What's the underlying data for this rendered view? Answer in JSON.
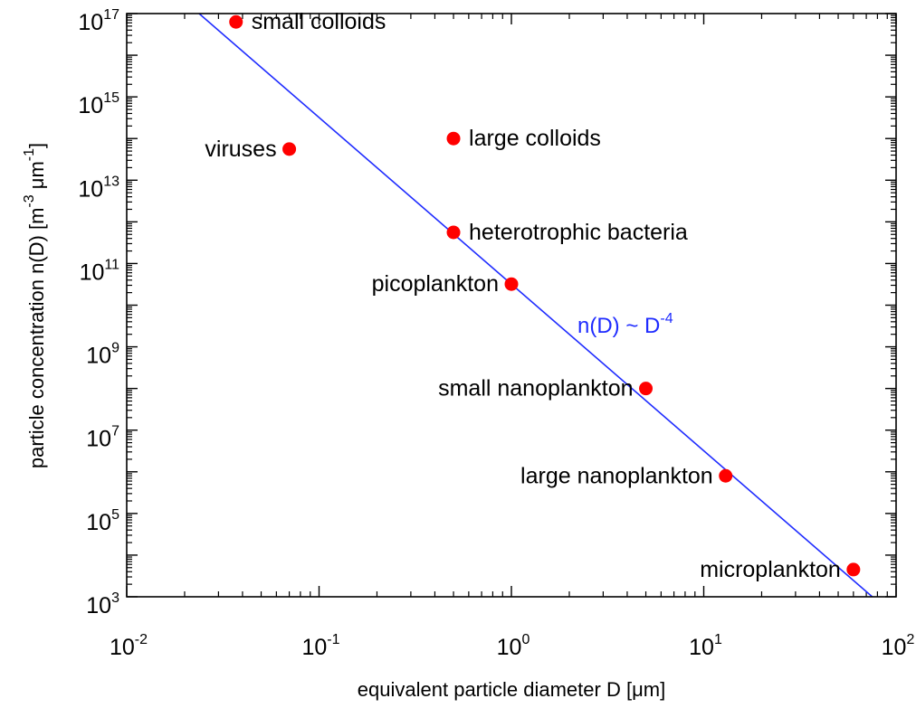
{
  "chart_data": {
    "type": "scatter",
    "xlabel": {
      "main": "equivalent particle diameter D  [",
      "unit": "μm",
      "close": "]"
    },
    "ylabel": {
      "main": "particle concentration n(D)  [m",
      "sup1": "-3",
      "mid": " μm",
      "sup2": "-1",
      "close": "]"
    },
    "x_scale": "log",
    "y_scale": "log",
    "xlim": [
      0.01,
      100
    ],
    "ylim": [
      1000,
      100000000000000000
    ],
    "x_ticks": [
      {
        "base": "10",
        "exp": "-2"
      },
      {
        "base": "10",
        "exp": "-1"
      },
      {
        "base": "10",
        "exp": "0"
      },
      {
        "base": "10",
        "exp": "1"
      },
      {
        "base": "10",
        "exp": "2"
      }
    ],
    "y_ticks": [
      {
        "base": "10",
        "exp": "3"
      },
      {
        "base": "10",
        "exp": "5"
      },
      {
        "base": "10",
        "exp": "7"
      },
      {
        "base": "10",
        "exp": "9"
      },
      {
        "base": "10",
        "exp": "11"
      },
      {
        "base": "10",
        "exp": "13"
      },
      {
        "base": "10",
        "exp": "15"
      },
      {
        "base": "10",
        "exp": "17"
      }
    ],
    "points": [
      {
        "label": "small colloids",
        "x": 0.037,
        "y": 63000000000000000,
        "label_side": "right"
      },
      {
        "label": "viruses",
        "x": 0.07,
        "y": 56000000000000,
        "label_side": "left"
      },
      {
        "label": "large colloids",
        "x": 0.5,
        "y": 100000000000000,
        "label_side": "right"
      },
      {
        "label": "heterotrophic bacteria",
        "x": 0.5,
        "y": 560000000000,
        "label_side": "right"
      },
      {
        "label": "picoplankton",
        "x": 1.0,
        "y": 32000000000,
        "label_side": "left"
      },
      {
        "label": "small nanoplankton",
        "x": 5.0,
        "y": 100000000,
        "label_side": "left"
      },
      {
        "label": "large nanoplankton",
        "x": 13.0,
        "y": 800000,
        "label_side": "left"
      },
      {
        "label": "microplankton",
        "x": 60.0,
        "y": 4500,
        "label_side": "left"
      }
    ],
    "fit_line": {
      "label_main": "n(D) ~ D",
      "label_sup": "-4",
      "exponent": -4,
      "coefficient": 32000000000
    },
    "grid": false,
    "colors": {
      "points": "#ff0000",
      "line": "#1f2cff",
      "axes": "#000000"
    }
  }
}
